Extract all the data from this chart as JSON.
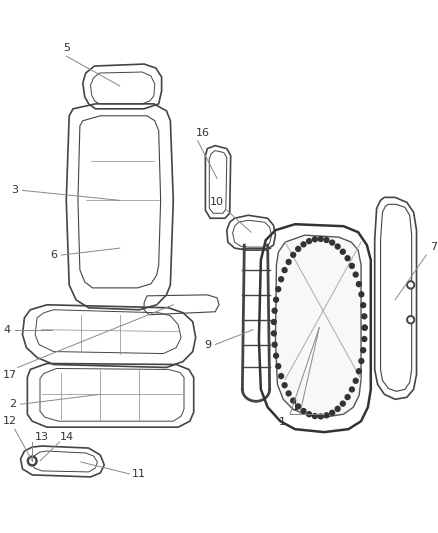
{
  "background_color": "#ffffff",
  "line_color": "#444444",
  "label_color": "#333333",
  "fig_width": 4.38,
  "fig_height": 5.33,
  "dpi": 100
}
